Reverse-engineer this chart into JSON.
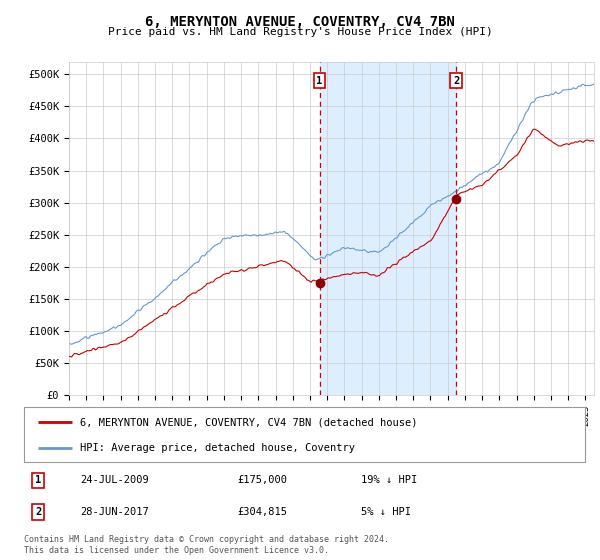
{
  "title": "6, MERYNTON AVENUE, COVENTRY, CV4 7BN",
  "subtitle": "Price paid vs. HM Land Registry's House Price Index (HPI)",
  "ylabel_ticks": [
    "£0",
    "£50K",
    "£100K",
    "£150K",
    "£200K",
    "£250K",
    "£300K",
    "£350K",
    "£400K",
    "£450K",
    "£500K"
  ],
  "ytick_vals": [
    0,
    50000,
    100000,
    150000,
    200000,
    250000,
    300000,
    350000,
    400000,
    450000,
    500000
  ],
  "ylim": [
    0,
    520000
  ],
  "xlim_start": 1995.0,
  "xlim_end": 2025.5,
  "sale1_x": 2009.56,
  "sale1_y": 175000,
  "sale1_label": "1",
  "sale1_date": "24-JUL-2009",
  "sale1_price": "£175,000",
  "sale1_hpi": "19% ↓ HPI",
  "sale2_x": 2017.49,
  "sale2_y": 304815,
  "sale2_label": "2",
  "sale2_date": "28-JUN-2017",
  "sale2_price": "£304,815",
  "sale2_hpi": "5% ↓ HPI",
  "hpi_color": "#6699cc",
  "price_color": "#cc0000",
  "shading_color": "#ddeeff",
  "legend1_label": "6, MERYNTON AVENUE, COVENTRY, CV4 7BN (detached house)",
  "legend2_label": "HPI: Average price, detached house, Coventry",
  "footer": "Contains HM Land Registry data © Crown copyright and database right 2024.\nThis data is licensed under the Open Government Licence v3.0.",
  "background_color": "#ffffff",
  "grid_color": "#cccccc"
}
